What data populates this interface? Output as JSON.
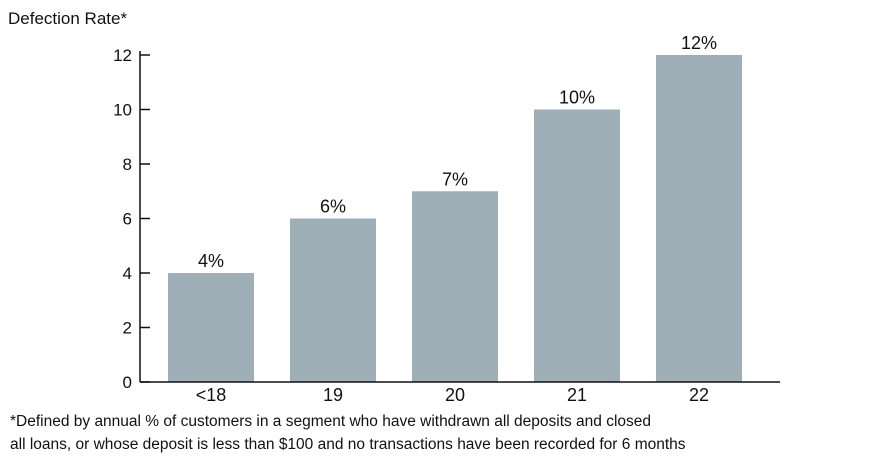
{
  "chart_data": {
    "type": "bar",
    "title": "",
    "ylabel": "Defection Rate*",
    "xlabel": "",
    "categories": [
      "<18",
      "19",
      "20",
      "21",
      "22"
    ],
    "values": [
      4,
      6,
      7,
      10,
      12
    ],
    "data_labels": [
      "4%",
      "6%",
      "7%",
      "10%",
      "12%"
    ],
    "ylim": [
      0,
      12
    ],
    "yticks": [
      0,
      2,
      4,
      6,
      8,
      10,
      12
    ],
    "grid": false,
    "legend": "none",
    "bar_color": "#9eafb8",
    "footnote": [
      "*Defined by annual % of customers in a segment who have withdrawn all deposits and closed",
      "all loans, or whose deposit is less than $100 and no transactions have been recorded for 6 months"
    ]
  }
}
